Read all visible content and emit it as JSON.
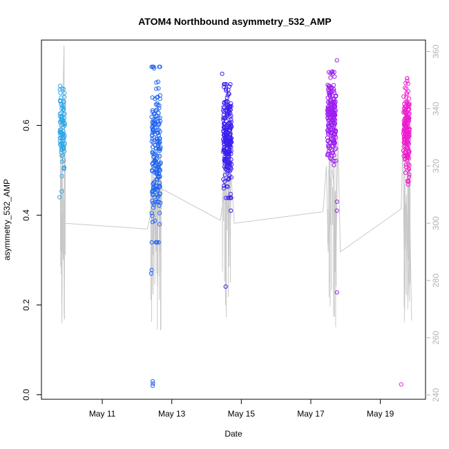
{
  "chart_data": {
    "type": "scatter",
    "title": "ATOM4 Northbound asymmetry_532_AMP",
    "xlabel": "Date",
    "ylabel": "asymmetry_532_AMP",
    "x_ticks": [
      "May 11",
      "May 13",
      "May 15",
      "May 17",
      "May 19"
    ],
    "x_tick_days": [
      11,
      13,
      15,
      17,
      19
    ],
    "xlim_days": [
      9.25,
      20.3
    ],
    "ylim": [
      -0.01,
      0.79
    ],
    "y_ticks": [
      0.0,
      0.2,
      0.4,
      0.6
    ],
    "y2lim": [
      238.5,
      364
    ],
    "y2_ticks": [
      240,
      260,
      280,
      300,
      320,
      340,
      360
    ],
    "y2_series_color": "#c8c8c8",
    "grid": false,
    "colors": [
      "#33aaee",
      "#1e66f5",
      "#3a1ef0",
      "#9a1ef0",
      "#f01ed0"
    ],
    "point_clusters": [
      {
        "day_center": 9.85,
        "day_spread": 0.14,
        "y_mean": 0.595,
        "y_sd": 0.04,
        "count": 95,
        "color": "#2fa8ea",
        "outliers": [
          [
            9.79,
            0.688
          ],
          [
            9.83,
            0.453
          ],
          [
            9.77,
            0.44
          ],
          [
            9.9,
            0.505
          ],
          [
            9.84,
            0.487
          ]
        ]
      },
      {
        "day_center": 12.55,
        "day_spread": 0.26,
        "y_mean": 0.535,
        "y_sd": 0.085,
        "count": 190,
        "color": "#1f64f2",
        "outliers": [
          [
            12.45,
            0.03
          ],
          [
            12.46,
            0.025
          ],
          [
            12.45,
            0.02
          ],
          [
            12.42,
            0.278
          ],
          [
            12.41,
            0.27
          ],
          [
            12.45,
            0.385
          ],
          [
            12.65,
            0.38
          ]
        ]
      },
      {
        "day_center": 14.6,
        "day_spread": 0.24,
        "y_mean": 0.565,
        "y_sd": 0.055,
        "count": 230,
        "color": "#3a1ff0",
        "outliers": [
          [
            14.55,
            0.241
          ],
          [
            14.45,
            0.715
          ],
          [
            14.7,
            0.41
          ]
        ]
      },
      {
        "day_center": 17.6,
        "day_spread": 0.25,
        "y_mean": 0.615,
        "y_sd": 0.045,
        "count": 200,
        "color": "#9c1ef0",
        "outliers": [
          [
            17.75,
            0.228
          ],
          [
            17.75,
            0.41
          ],
          [
            17.75,
            0.43
          ],
          [
            17.75,
            0.745
          ],
          [
            17.62,
            0.72
          ]
        ]
      },
      {
        "day_center": 19.75,
        "day_spread": 0.18,
        "y_mean": 0.59,
        "y_sd": 0.05,
        "count": 180,
        "color": "#ee1ed0",
        "outliers": [
          [
            19.6,
            0.023
          ],
          [
            19.8,
            0.693
          ],
          [
            19.8,
            0.468
          ]
        ]
      }
    ],
    "secondary_line": [
      [
        9.8,
        285
      ],
      [
        9.82,
        320
      ],
      [
        9.84,
        265
      ],
      [
        9.86,
        340
      ],
      [
        9.88,
        350
      ],
      [
        9.9,
        362
      ],
      [
        9.92,
        300
      ],
      [
        12.3,
        298
      ],
      [
        12.42,
        305
      ],
      [
        12.46,
        275
      ],
      [
        12.5,
        310
      ],
      [
        12.55,
        290
      ],
      [
        12.6,
        318
      ],
      [
        12.65,
        295
      ],
      [
        12.72,
        312
      ],
      [
        14.4,
        301
      ],
      [
        14.55,
        315
      ],
      [
        14.6,
        303
      ],
      [
        14.7,
        318
      ],
      [
        14.8,
        300
      ],
      [
        17.35,
        304
      ],
      [
        17.45,
        320
      ],
      [
        17.5,
        290
      ],
      [
        17.55,
        325
      ],
      [
        17.65,
        315
      ],
      [
        17.72,
        285
      ],
      [
        17.78,
        330
      ],
      [
        17.85,
        290
      ],
      [
        19.6,
        305
      ],
      [
        19.65,
        330
      ],
      [
        19.7,
        270
      ],
      [
        19.75,
        310
      ],
      [
        19.8,
        275
      ],
      [
        19.85,
        300
      ],
      [
        19.9,
        266
      ]
    ]
  }
}
